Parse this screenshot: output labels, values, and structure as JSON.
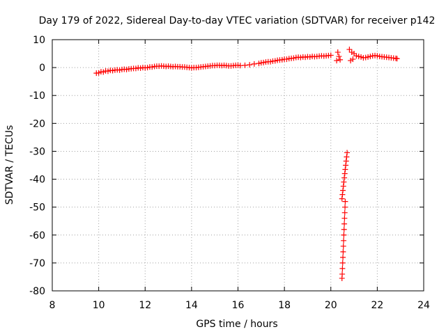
{
  "chart_data": {
    "type": "scatter",
    "title": "Day 179 of 2022, Sidereal Day-to-day VTEC variation (SDTVAR) for receiver p142",
    "xlabel": "GPS time / hours",
    "ylabel": "SDTVAR / TECUs",
    "xlim": [
      8,
      24
    ],
    "ylim": [
      -80,
      10
    ],
    "xticks": [
      8,
      10,
      12,
      14,
      16,
      18,
      20,
      22,
      24
    ],
    "yticks": [
      10,
      0,
      -10,
      -20,
      -30,
      -40,
      -50,
      -60,
      -70,
      -80
    ],
    "grid": true,
    "marker": "+",
    "series": [
      {
        "name": "SDTVAR",
        "color": "#ff0000",
        "points": [
          [
            9.9,
            -2.0
          ],
          [
            10.0,
            -1.9
          ],
          [
            10.1,
            -1.5
          ],
          [
            10.2,
            -1.6
          ],
          [
            10.3,
            -1.2
          ],
          [
            10.4,
            -1.3
          ],
          [
            10.5,
            -1.0
          ],
          [
            10.6,
            -1.1
          ],
          [
            10.7,
            -0.9
          ],
          [
            10.8,
            -0.8
          ],
          [
            10.9,
            -0.9
          ],
          [
            11.0,
            -0.7
          ],
          [
            11.1,
            -0.6
          ],
          [
            11.2,
            -0.7
          ],
          [
            11.3,
            -0.5
          ],
          [
            11.4,
            -0.4
          ],
          [
            11.5,
            -0.3
          ],
          [
            11.6,
            -0.3
          ],
          [
            11.7,
            -0.1
          ],
          [
            11.8,
            -0.2
          ],
          [
            11.9,
            0.0
          ],
          [
            12.0,
            -0.1
          ],
          [
            12.1,
            0.0
          ],
          [
            12.2,
            0.2
          ],
          [
            12.3,
            0.2
          ],
          [
            12.4,
            0.4
          ],
          [
            12.5,
            0.5
          ],
          [
            12.6,
            0.5
          ],
          [
            12.7,
            0.6
          ],
          [
            12.8,
            0.5
          ],
          [
            12.9,
            0.4
          ],
          [
            13.0,
            0.5
          ],
          [
            13.1,
            0.4
          ],
          [
            13.2,
            0.3
          ],
          [
            13.3,
            0.4
          ],
          [
            13.4,
            0.3
          ],
          [
            13.5,
            0.3
          ],
          [
            13.6,
            0.2
          ],
          [
            13.7,
            0.2
          ],
          [
            13.8,
            0.1
          ],
          [
            13.9,
            0.0
          ],
          [
            14.0,
            -0.1
          ],
          [
            14.1,
            0.0
          ],
          [
            14.2,
            0.0
          ],
          [
            14.3,
            0.1
          ],
          [
            14.4,
            0.2
          ],
          [
            14.5,
            0.3
          ],
          [
            14.6,
            0.4
          ],
          [
            14.7,
            0.5
          ],
          [
            14.8,
            0.6
          ],
          [
            14.9,
            0.7
          ],
          [
            15.0,
            0.7
          ],
          [
            15.1,
            0.8
          ],
          [
            15.2,
            0.8
          ],
          [
            15.3,
            0.7
          ],
          [
            15.4,
            0.8
          ],
          [
            15.5,
            0.7
          ],
          [
            15.6,
            0.6
          ],
          [
            15.7,
            0.6
          ],
          [
            15.8,
            0.7
          ],
          [
            15.9,
            0.8
          ],
          [
            16.0,
            0.8
          ],
          [
            16.1,
            0.7
          ],
          [
            16.3,
            0.8
          ],
          [
            16.5,
            1.0
          ],
          [
            16.7,
            1.3
          ],
          [
            16.9,
            1.5
          ],
          [
            17.0,
            1.7
          ],
          [
            17.1,
            1.8
          ],
          [
            17.2,
            2.0
          ],
          [
            17.3,
            2.1
          ],
          [
            17.4,
            2.1
          ],
          [
            17.5,
            2.3
          ],
          [
            17.6,
            2.4
          ],
          [
            17.7,
            2.6
          ],
          [
            17.8,
            2.7
          ],
          [
            17.9,
            2.8
          ],
          [
            18.0,
            3.0
          ],
          [
            18.1,
            3.0
          ],
          [
            18.2,
            3.2
          ],
          [
            18.3,
            3.3
          ],
          [
            18.4,
            3.4
          ],
          [
            18.5,
            3.6
          ],
          [
            18.6,
            3.7
          ],
          [
            18.7,
            3.6
          ],
          [
            18.8,
            3.8
          ],
          [
            18.9,
            3.7
          ],
          [
            19.0,
            3.9
          ],
          [
            19.1,
            3.8
          ],
          [
            19.2,
            4.0
          ],
          [
            19.3,
            3.9
          ],
          [
            19.4,
            4.0
          ],
          [
            19.5,
            4.1
          ],
          [
            19.6,
            4.2
          ],
          [
            19.7,
            4.1
          ],
          [
            19.8,
            4.2
          ],
          [
            19.9,
            4.3
          ],
          [
            20.0,
            4.4
          ],
          [
            20.25,
            2.5
          ],
          [
            20.3,
            5.5
          ],
          [
            20.35,
            4.0
          ],
          [
            20.4,
            2.8
          ],
          [
            20.8,
            6.5
          ],
          [
            20.9,
            5.5
          ],
          [
            21.0,
            5.0
          ],
          [
            20.85,
            2.5
          ],
          [
            20.95,
            3.0
          ],
          [
            21.1,
            4.2
          ],
          [
            21.2,
            4.0
          ],
          [
            21.3,
            3.8
          ],
          [
            21.4,
            3.5
          ],
          [
            21.5,
            3.6
          ],
          [
            21.6,
            3.8
          ],
          [
            21.7,
            4.0
          ],
          [
            21.8,
            4.2
          ],
          [
            21.9,
            4.3
          ],
          [
            22.0,
            4.2
          ],
          [
            22.1,
            4.0
          ],
          [
            22.2,
            3.9
          ],
          [
            22.3,
            3.8
          ],
          [
            22.4,
            3.7
          ],
          [
            22.5,
            3.6
          ],
          [
            22.6,
            3.5
          ],
          [
            22.7,
            3.4
          ],
          [
            22.8,
            3.3
          ],
          [
            22.85,
            3.2
          ],
          [
            20.7,
            -30.5
          ],
          [
            20.68,
            -32
          ],
          [
            20.66,
            -33.5
          ],
          [
            20.64,
            -35
          ],
          [
            20.62,
            -36.5
          ],
          [
            20.6,
            -38
          ],
          [
            20.58,
            -39.5
          ],
          [
            20.56,
            -41
          ],
          [
            20.54,
            -42.5
          ],
          [
            20.52,
            -44
          ],
          [
            20.5,
            -45.5
          ],
          [
            20.48,
            -47
          ],
          [
            20.62,
            -48
          ],
          [
            20.61,
            -50
          ],
          [
            20.6,
            -52
          ],
          [
            20.59,
            -54
          ],
          [
            20.58,
            -56
          ],
          [
            20.57,
            -58
          ],
          [
            20.56,
            -60
          ],
          [
            20.55,
            -62
          ],
          [
            20.54,
            -64
          ],
          [
            20.53,
            -66
          ],
          [
            20.52,
            -68
          ],
          [
            20.51,
            -70
          ],
          [
            20.5,
            -72
          ],
          [
            20.49,
            -74
          ],
          [
            20.48,
            -75.5
          ]
        ]
      }
    ]
  }
}
